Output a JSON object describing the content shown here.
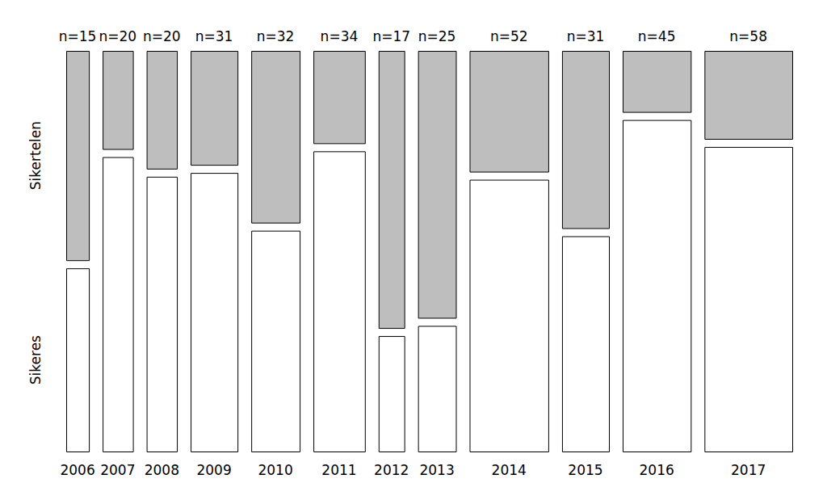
{
  "chart_data": {
    "type": "mosaic",
    "categories": [
      "2006",
      "2007",
      "2008",
      "2009",
      "2010",
      "2011",
      "2012",
      "2013",
      "2014",
      "2015",
      "2016",
      "2017"
    ],
    "totals": [
      15,
      20,
      20,
      31,
      32,
      34,
      17,
      25,
      52,
      31,
      45,
      58
    ],
    "total_labels": [
      "n=15",
      "n=20",
      "n=20",
      "n=31",
      "n=32",
      "n=34",
      "n=17",
      "n=25",
      "n=52",
      "n=31",
      "n=45",
      "n=58"
    ],
    "series": [
      {
        "name": "Sikeres",
        "color": "#ffffff",
        "values": [
          7,
          15,
          14,
          22,
          18,
          26,
          5,
          8,
          36,
          17,
          38,
          45
        ]
      },
      {
        "name": "Sikertelen",
        "color": "#bebebe",
        "values": [
          8,
          5,
          6,
          9,
          14,
          8,
          12,
          17,
          16,
          14,
          7,
          13
        ]
      }
    ]
  }
}
